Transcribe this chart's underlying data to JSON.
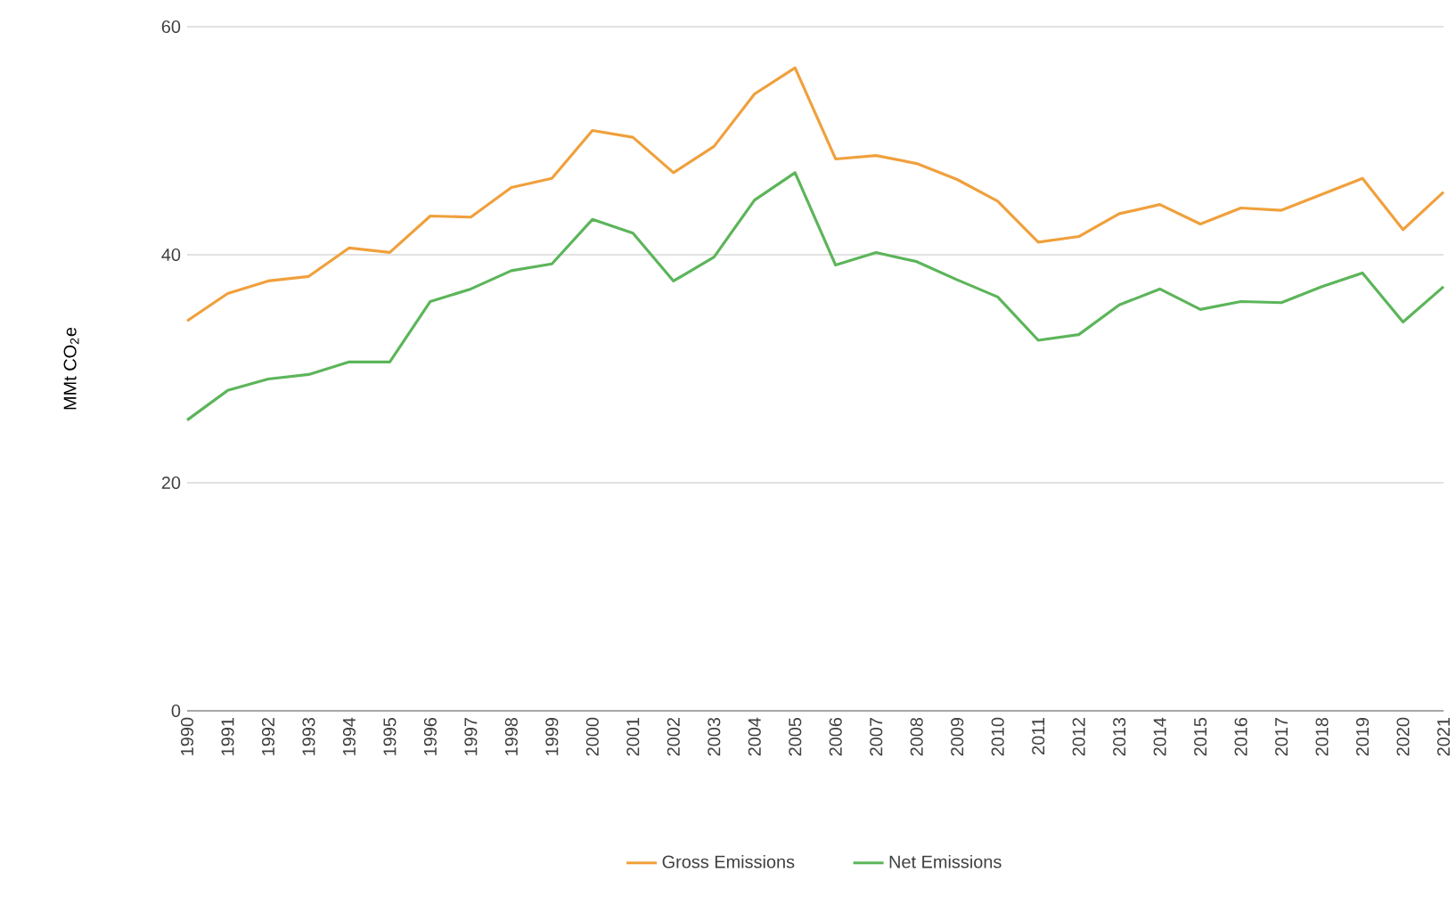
{
  "chart_data": {
    "type": "line",
    "ylabel": "MMt CO$_{2}$e",
    "categories": [
      "1990",
      "1991",
      "1992",
      "1993",
      "1994",
      "1995",
      "1996",
      "1997",
      "1998",
      "1999",
      "2000",
      "2001",
      "2002",
      "2003",
      "2004",
      "2005",
      "2006",
      "2007",
      "2008",
      "2009",
      "2010",
      "2011",
      "2012",
      "2013",
      "2014",
      "2015",
      "2016",
      "2017",
      "2018",
      "2019",
      "2020",
      "2021"
    ],
    "series": [
      {
        "name": "Gross Emissions",
        "color": "#f0a03c",
        "values": [
          34.2,
          36.6,
          37.7,
          38.1,
          40.6,
          40.2,
          43.4,
          43.3,
          45.9,
          46.7,
          50.9,
          50.3,
          47.2,
          49.5,
          54.1,
          56.4,
          48.4,
          48.7,
          48.0,
          46.6,
          44.7,
          41.1,
          41.6,
          43.6,
          44.4,
          42.7,
          44.1,
          43.9,
          45.3,
          46.7,
          42.2,
          45.5
        ]
      },
      {
        "name": "Net Emissions",
        "color": "#5cb55a",
        "values": [
          25.5,
          28.1,
          29.1,
          29.5,
          30.6,
          30.6,
          35.9,
          37.0,
          38.6,
          39.2,
          43.1,
          41.9,
          37.7,
          39.8,
          44.8,
          47.2,
          39.1,
          40.2,
          39.4,
          37.8,
          36.3,
          32.5,
          33.0,
          35.6,
          37.0,
          35.2,
          35.9,
          35.8,
          37.2,
          38.4,
          34.1,
          37.2
        ]
      }
    ],
    "ylim": [
      0,
      60
    ],
    "yticks": [
      0,
      20,
      40,
      60
    ],
    "grid": "y",
    "legend": "bottom",
    "marker": "none",
    "line_style": "solid"
  }
}
